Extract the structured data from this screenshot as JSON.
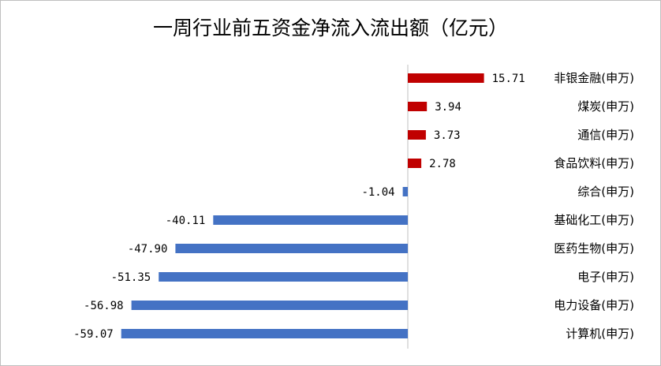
{
  "chart_data": {
    "type": "bar",
    "orientation": "horizontal",
    "title": "一周行业前五资金净流入流出额（亿元）",
    "categories": [
      "非银金融(申万)",
      "煤炭(申万)",
      "通信(申万)",
      "食品饮料(申万)",
      "综合(申万)",
      "基础化工(申万)",
      "医药生物(申万)",
      "电子(申万)",
      "电力设备(申万)",
      "计算机(申万)"
    ],
    "values": [
      15.71,
      3.94,
      3.73,
      2.78,
      -1.04,
      -40.11,
      -47.9,
      -51.35,
      -56.98,
      -59.07
    ],
    "value_labels": [
      "15.71",
      "3.94",
      "3.73",
      "2.78",
      "-1.04",
      "-40.11",
      "-47.90",
      "-51.35",
      "-56.98",
      "-59.07"
    ],
    "colors": {
      "positive": "#c00000",
      "negative": "#4472c4",
      "axis": "#bfbfbf"
    },
    "xlim": [
      -59.07,
      15.71
    ],
    "grid": false,
    "legend": "none"
  }
}
